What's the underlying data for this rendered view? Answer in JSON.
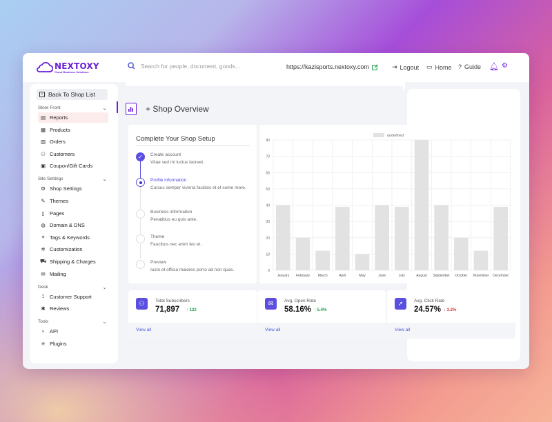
{
  "brand": {
    "name": "NEXTOXY",
    "tagline": "Cloud Business Solutions",
    "accent": "#6b21d6"
  },
  "search": {
    "placeholder": "Search for people, document, goods..."
  },
  "header": {
    "url": "https://kazisports.nextoxy.com",
    "links": [
      {
        "label": "Logout",
        "icon": "logout-icon"
      },
      {
        "label": "Home",
        "icon": "home-icon"
      },
      {
        "label": "Guide",
        "icon": "guide-icon"
      }
    ]
  },
  "sidebar": {
    "back_label": "Back To Shop List",
    "sections": [
      {
        "title": "Store Front",
        "items": [
          "Reports",
          "Products",
          "Orders",
          "Customers",
          "Coupon/Gift Cards"
        ]
      },
      {
        "title": "Site Settings",
        "items": [
          "Shop Settings",
          "Themes",
          "Pages",
          "Domain & DNS",
          "Tags & Keywords",
          "Customization",
          "Shipping & Charges",
          "Mailing"
        ]
      },
      {
        "title": "Desk",
        "items": [
          "Customer Support",
          "Reviews"
        ]
      },
      {
        "title": "Tools",
        "items": [
          "API",
          "Plugins"
        ]
      }
    ],
    "active_item": "Reports"
  },
  "page": {
    "title": "+ Shop Overview"
  },
  "setup": {
    "title": "Complete Your Shop Setup",
    "steps": [
      {
        "title": "Create account",
        "desc": "Vitae sed mi luctus laoreet.",
        "state": "done"
      },
      {
        "title": "Profile information",
        "desc": "Cursus semper viverra facilisis et et some more.",
        "state": "current"
      },
      {
        "title": "Business information",
        "desc": "Penatibus eu quis ante.",
        "state": "todo"
      },
      {
        "title": "Theme",
        "desc": "Faucibus nec enim leo et.",
        "state": "todo"
      },
      {
        "title": "Preview",
        "desc": "Iusto et officia maiores porro ad non quas.",
        "state": "todo"
      }
    ]
  },
  "chart_data": {
    "type": "bar",
    "legend": "undefined",
    "categories": [
      "January",
      "February",
      "March",
      "April",
      "May",
      "June",
      "July",
      "August",
      "September",
      "October",
      "November",
      "December"
    ],
    "series": [
      {
        "name": "undefined",
        "values": [
          40,
          20,
          12,
          39,
          10,
          40,
          39,
          80,
          40,
          20,
          12,
          39
        ]
      }
    ],
    "ylim": [
      0,
      80
    ],
    "yticks": [
      0,
      10,
      20,
      30,
      40,
      50,
      60,
      70,
      80
    ],
    "grid": true,
    "bar_color": "#e2e2e2"
  },
  "stats": [
    {
      "label": "Total Subscribers",
      "value": "71,897",
      "change": "122",
      "direction": "up",
      "footer": "View all",
      "icon": "users-icon"
    },
    {
      "label": "Avg. Open Rate",
      "value": "58.16%",
      "change": "5.4%",
      "direction": "up",
      "footer": "View all",
      "icon": "mail-open-icon"
    },
    {
      "label": "Avg. Click Rate",
      "value": "24.57%",
      "change": "3.2%",
      "direction": "down",
      "footer": "View all",
      "icon": "cursor-click-icon"
    }
  ]
}
